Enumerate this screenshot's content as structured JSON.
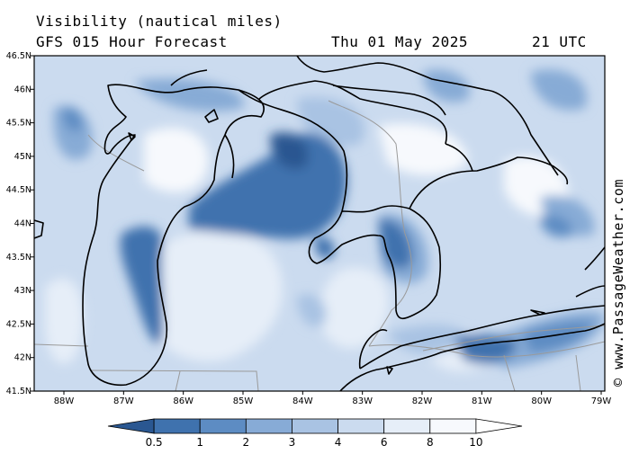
{
  "header": {
    "title": "Visibility (nautical miles)",
    "subtitle": "GFS 015 Hour Forecast",
    "datetime": "Thu 01 May 2025",
    "time": "21 UTC"
  },
  "credit": "© www.PassageWeather.com",
  "map": {
    "lat_labels": [
      "46.5N",
      "46N",
      "45.5N",
      "45N",
      "44.5N",
      "44N",
      "43.5N",
      "43N",
      "42.5N",
      "42N",
      "41.5N"
    ],
    "lon_labels": [
      "88W",
      "87W",
      "86W",
      "85W",
      "84W",
      "83W",
      "82W",
      "81W",
      "80W",
      "79W"
    ],
    "region": "Great Lakes (Lake Michigan, Lake Huron, Lake Erie)"
  },
  "colorbar": {
    "labels": [
      "0.5",
      "1",
      "2",
      "3",
      "4",
      "6",
      "8",
      "10"
    ],
    "colors": [
      "#2a5791",
      "#3f72ae",
      "#5d8cc3",
      "#87abd6",
      "#a9c3e3",
      "#cbdbef",
      "#e6eef8",
      "#f7f9fd"
    ]
  },
  "colors": {
    "background": "#ffffff",
    "coast": "#000000",
    "border": "#9a9a9a"
  }
}
